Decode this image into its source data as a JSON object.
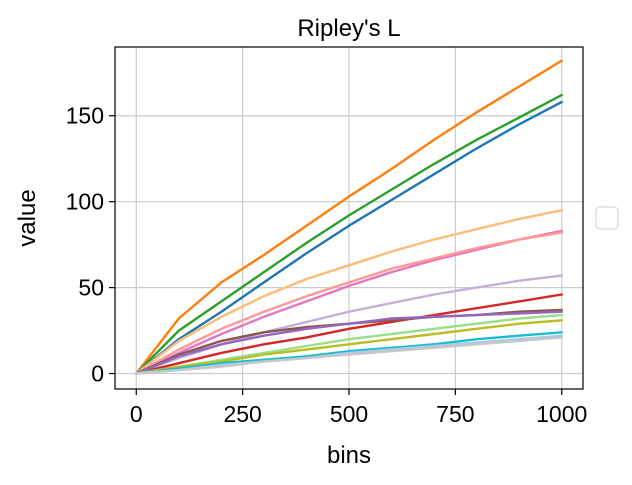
{
  "chart_data": {
    "type": "line",
    "title": "Ripley's L",
    "xlabel": "bins",
    "ylabel": "value",
    "xlim": [
      -50,
      1050
    ],
    "ylim": [
      -9,
      190
    ],
    "x_ticks": [
      0,
      250,
      500,
      750,
      1000
    ],
    "x_tick_labels": [
      "0",
      "250",
      "500",
      "750",
      "1000"
    ],
    "y_ticks": [
      0,
      50,
      100,
      150
    ],
    "y_tick_labels": [
      "0",
      "50",
      "100",
      "150"
    ],
    "grid": true,
    "legend": "empty box, right side",
    "x": [
      0,
      100,
      200,
      300,
      400,
      500,
      600,
      700,
      800,
      900,
      1000
    ],
    "series": [
      {
        "color": "#ff7f0e",
        "values": [
          0,
          32,
          53,
          69,
          86,
          103,
          119,
          136,
          152,
          167,
          182
        ]
      },
      {
        "color": "#2ca02c",
        "values": [
          0,
          25,
          42,
          59,
          76,
          92,
          107,
          122,
          136,
          149,
          162
        ]
      },
      {
        "color": "#1f77b4",
        "values": [
          0,
          20,
          36,
          53,
          70,
          86,
          101,
          116,
          131,
          145,
          158
        ]
      },
      {
        "color": "#ffbb78",
        "values": [
          0,
          19,
          33,
          45,
          55,
          63,
          71,
          78,
          84,
          90,
          95
        ]
      },
      {
        "color": "#e377c2",
        "values": [
          0,
          12,
          23,
          33,
          42,
          51,
          59,
          66,
          72,
          78,
          83
        ]
      },
      {
        "color": "#ff9896",
        "values": [
          0,
          14,
          26,
          36,
          45,
          53,
          61,
          67,
          73,
          78,
          82
        ]
      },
      {
        "color": "#c5b0d5",
        "values": [
          0,
          9,
          17,
          24,
          30,
          36,
          41,
          46,
          50,
          54,
          57
        ]
      },
      {
        "color": "#d62728",
        "values": [
          0,
          6,
          12,
          17,
          21,
          26,
          30,
          34,
          38,
          42,
          46
        ]
      },
      {
        "color": "#8c564b",
        "values": [
          0,
          11,
          19,
          24,
          27,
          29,
          31,
          33,
          34,
          36,
          37
        ]
      },
      {
        "color": "#9467bd",
        "values": [
          0,
          10,
          17,
          22,
          26,
          29,
          32,
          33,
          34,
          35,
          36
        ]
      },
      {
        "color": "#98df8a",
        "values": [
          0,
          4,
          8,
          12,
          16,
          20,
          23,
          26,
          29,
          32,
          34
        ]
      },
      {
        "color": "#bcbd22",
        "values": [
          0,
          4,
          7,
          11,
          14,
          17,
          20,
          23,
          26,
          29,
          31
        ]
      },
      {
        "color": "#17becf",
        "values": [
          0,
          3,
          6,
          8,
          10,
          13,
          15,
          17,
          20,
          22,
          24
        ]
      },
      {
        "color": "#aec7e8",
        "values": [
          0,
          2,
          5,
          7,
          9,
          12,
          14,
          16,
          18,
          20,
          22
        ]
      },
      {
        "color": "#c7c7c7",
        "values": [
          0,
          2,
          4,
          7,
          9,
          11,
          13,
          15,
          17,
          19,
          21
        ]
      }
    ]
  }
}
